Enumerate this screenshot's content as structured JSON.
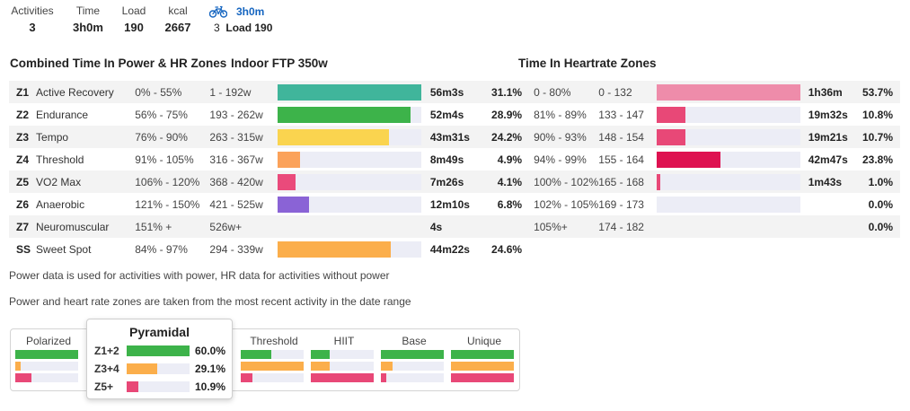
{
  "summary": {
    "activities_label": "Activities",
    "activities": "3",
    "time_label": "Time",
    "time": "3h0m",
    "load_label": "Load",
    "load": "190",
    "kcal_label": "kcal",
    "kcal": "2667",
    "bike_icon": "bicycle-icon",
    "bike_time": "3h0m",
    "bike_count": "3",
    "bike_load": "Load 190"
  },
  "headers": {
    "combined": "Combined Time In Power & HR Zones",
    "ftp": "Indoor FTP 350w",
    "hr": "Time In Heartrate Zones"
  },
  "colors": {
    "Z1": "#40b59b",
    "Z2": "#3db34a",
    "Z3": "#fad44f",
    "Z4": "#fba25a",
    "Z5": "#ea4a7b",
    "Z6": "#8a63d6",
    "SS": "#fbae4b",
    "hr": "#e84877",
    "hr_z1": "#ee8caa",
    "hr_z4": "#de1150",
    "track": "#ecedf6"
  },
  "zones": [
    {
      "code": "Z1",
      "name": "Active Recovery",
      "pct": "0% - 55%",
      "watts": "1 - 192w",
      "time": "56m3s",
      "ratio": "31.1%",
      "fill": 1.0,
      "hr_pct": "0 - 80%",
      "hr_range": "0 - 132",
      "hr_time": "1h36m",
      "hr_ratio": "53.7%",
      "hr_fill": 1.0
    },
    {
      "code": "Z2",
      "name": "Endurance",
      "pct": "56% - 75%",
      "watts": "193 - 262w",
      "time": "52m4s",
      "ratio": "28.9%",
      "fill": 0.93,
      "hr_pct": "81% - 89%",
      "hr_range": "133 - 147",
      "hr_time": "19m32s",
      "hr_ratio": "10.8%",
      "hr_fill": 0.2
    },
    {
      "code": "Z3",
      "name": "Tempo",
      "pct": "76% - 90%",
      "watts": "263 - 315w",
      "time": "43m31s",
      "ratio": "24.2%",
      "fill": 0.78,
      "hr_pct": "90% - 93%",
      "hr_range": "148 - 154",
      "hr_time": "19m21s",
      "hr_ratio": "10.7%",
      "hr_fill": 0.2
    },
    {
      "code": "Z4",
      "name": "Threshold",
      "pct": "91% - 105%",
      "watts": "316 - 367w",
      "time": "8m49s",
      "ratio": "4.9%",
      "fill": 0.16,
      "hr_pct": "94% - 99%",
      "hr_range": "155 - 164",
      "hr_time": "42m47s",
      "hr_ratio": "23.8%",
      "hr_fill": 0.44
    },
    {
      "code": "Z5",
      "name": "VO2 Max",
      "pct": "106% - 120%",
      "watts": "368 - 420w",
      "time": "7m26s",
      "ratio": "4.1%",
      "fill": 0.13,
      "hr_pct": "100% - 102%",
      "hr_range": "165 - 168",
      "hr_time": "1m43s",
      "hr_ratio": "1.0%",
      "hr_fill": 0.02
    },
    {
      "code": "Z6",
      "name": "Anaerobic",
      "pct": "121% - 150%",
      "watts": "421 - 525w",
      "time": "12m10s",
      "ratio": "6.8%",
      "fill": 0.22,
      "hr_pct": "102% - 105%",
      "hr_range": "169 - 173",
      "hr_time": "",
      "hr_ratio": "0.0%",
      "hr_fill": 0
    },
    {
      "code": "Z7",
      "name": "Neuromuscular",
      "pct": "151% +",
      "watts": "526w+",
      "time": "4s",
      "ratio": "",
      "fill": null,
      "hr_pct": "105%+",
      "hr_range": "174 - 182",
      "hr_time": "",
      "hr_ratio": "0.0%",
      "hr_fill": null
    },
    {
      "code": "SS",
      "name": "Sweet Spot",
      "pct": "84% - 97%",
      "watts": "294 - 339w",
      "time": "44m22s",
      "ratio": "24.6%",
      "fill": 0.79,
      "hr_pct": "",
      "hr_range": "",
      "hr_time": "",
      "hr_ratio": "",
      "hr_fill": null
    }
  ],
  "notes": {
    "n1": "Power data is used for activities with power, HR data for activities without power",
    "n2": "Power and heart rate zones are taken from the most recent activity in the date range"
  },
  "distribution": {
    "columns": [
      {
        "label": "Polarized",
        "bars": [
          1.0,
          0.08,
          0.25
        ]
      },
      {
        "label": "Pyramidal",
        "bars": [
          1.0,
          0.48,
          0.18
        ]
      },
      {
        "label": "Threshold",
        "bars": [
          0.48,
          1.0,
          0.18
        ]
      },
      {
        "label": "HIIT",
        "bars": [
          0.3,
          0.3,
          1.0
        ]
      },
      {
        "label": "Base",
        "bars": [
          1.0,
          0.18,
          0.08
        ]
      },
      {
        "label": "Unique",
        "bars": [
          1.0,
          1.0,
          1.0
        ]
      }
    ],
    "popup": {
      "title": "Pyramidal",
      "rows": [
        {
          "key": "Z1+2",
          "value": "60.0%",
          "fill": 1.0
        },
        {
          "key": "Z3+4",
          "value": "29.1%",
          "fill": 0.48
        },
        {
          "key": "Z5+",
          "value": "10.9%",
          "fill": 0.18
        }
      ]
    }
  }
}
